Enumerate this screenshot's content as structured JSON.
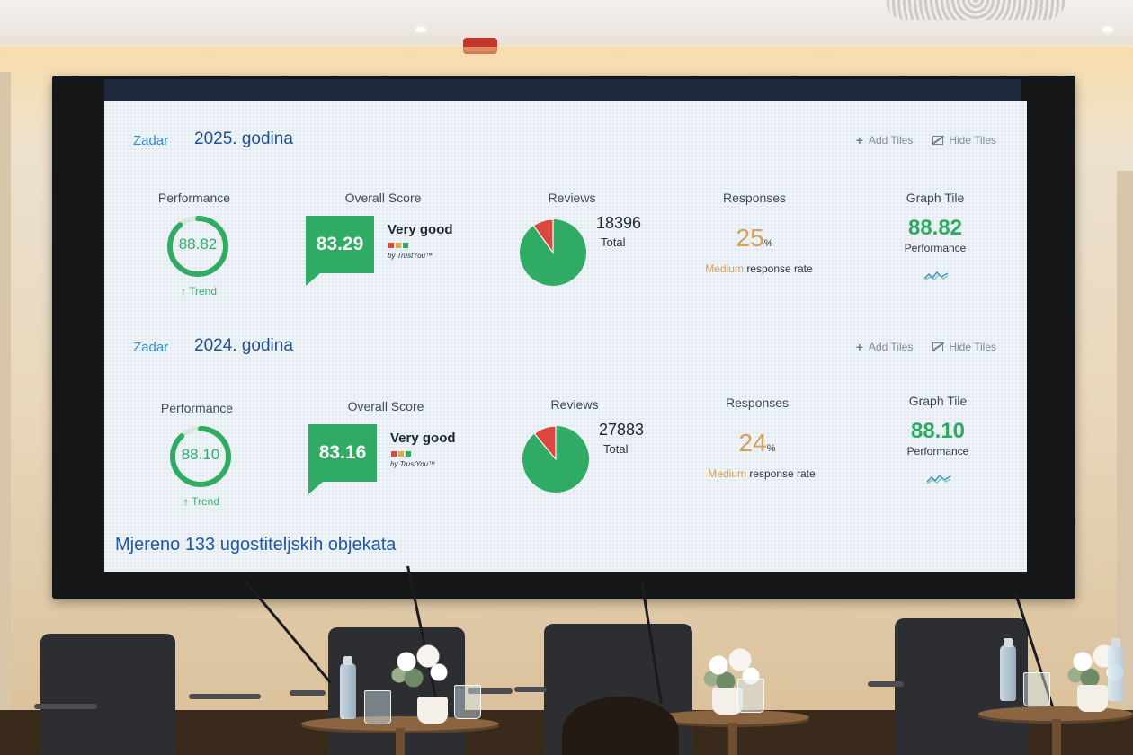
{
  "dashboards": [
    {
      "city": "Zadar",
      "year": "2025. godina",
      "actions": {
        "add_tiles": "Add Tiles",
        "hide_tiles": "Hide Tiles"
      },
      "performance": {
        "title": "Performance",
        "value": "88.82",
        "level": 0.8882,
        "trend": "↑ Trend"
      },
      "overall_score": {
        "title": "Overall Score",
        "value": "83.29",
        "rating": "Very good",
        "provider": "by TrustYou™"
      },
      "reviews": {
        "title": "Reviews",
        "total": "18396",
        "total_label": "Total",
        "negative_share": 0.1
      },
      "responses": {
        "title": "Responses",
        "value": "25",
        "unit": "%",
        "level_word": "Medium",
        "rate_label": "response rate"
      },
      "graph_tile": {
        "title": "Graph Tile",
        "value": "88.82",
        "label": "Performance"
      }
    },
    {
      "city": "Zadar",
      "year": "2024. godina",
      "actions": {
        "add_tiles": "Add Tiles",
        "hide_tiles": "Hide Tiles"
      },
      "performance": {
        "title": "Performance",
        "value": "88.10",
        "level": 0.881,
        "trend": "↑ Trend"
      },
      "overall_score": {
        "title": "Overall Score",
        "value": "83.16",
        "rating": "Very good",
        "provider": "by TrustYou™"
      },
      "reviews": {
        "title": "Reviews",
        "total": "27883",
        "total_label": "Total",
        "negative_share": 0.11
      },
      "responses": {
        "title": "Responses",
        "value": "24",
        "unit": "%",
        "level_word": "Medium",
        "rate_label": "response rate"
      },
      "graph_tile": {
        "title": "Graph Tile",
        "value": "88.10",
        "label": "Performance"
      }
    }
  ],
  "footer_note": "Mjereno 133 ugostiteljskih objekata",
  "colors": {
    "green": "#2eac62",
    "red": "#e0453b",
    "orange": "#d8a257",
    "blue_title": "#1e4f8f",
    "blue_city": "#2f8fd8",
    "trust_dots": [
      "#e0453b",
      "#e9a93a",
      "#2eac62"
    ]
  },
  "icons": [
    "plus-icon",
    "hide-tiles-icon",
    "trend-arrow-icon",
    "line-chart-icon"
  ]
}
